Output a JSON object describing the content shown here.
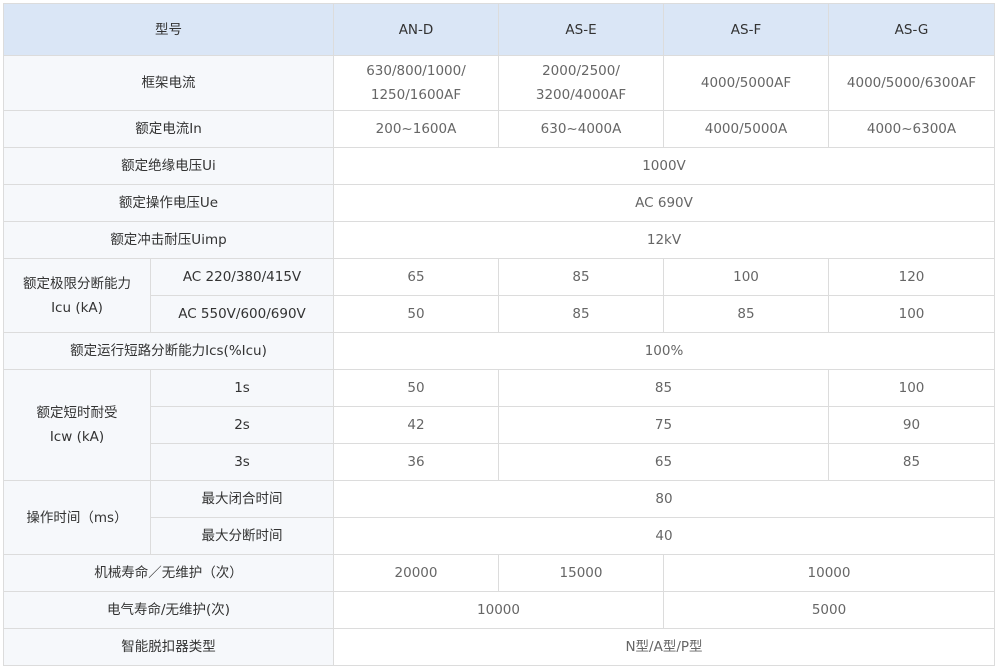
{
  "header": {
    "label": "型号",
    "models": [
      "AN-D",
      "AS-E",
      "AS-F",
      "AS-G"
    ]
  },
  "rows": {
    "frame": {
      "label": "框架电流",
      "values": [
        "630/800/1000/\n1250/1600AF",
        "2000/2500/\n3200/4000AF",
        "4000/5000AF",
        "4000/5000/6300AF"
      ]
    },
    "in": {
      "label": "额定电流In",
      "values": [
        "200~1600A",
        "630~4000A",
        "4000/5000A",
        "4000~6300A"
      ]
    },
    "ui": {
      "label": "额定绝缘电压Ui",
      "value": "1000V"
    },
    "ue": {
      "label": "额定操作电压Ue",
      "value": "AC 690V"
    },
    "uimp": {
      "label": "额定冲击耐压Uimp",
      "value": "12kV"
    },
    "icu": {
      "label": "额定极限分断能力\nIcu (kA)",
      "sub": [
        {
          "label": "AC 220/380/415V",
          "values": [
            "65",
            "85",
            "100",
            "120"
          ]
        },
        {
          "label": "AC 550V/600/690V",
          "values": [
            "50",
            "85",
            "85",
            "100"
          ]
        }
      ]
    },
    "ics": {
      "label": "额定运行短路分断能力Ics(%Icu)",
      "value": "100%"
    },
    "icw": {
      "label": "额定短时耐受\nIcw (kA)",
      "sub": [
        {
          "label": "1s",
          "values": [
            "50",
            "85",
            "100"
          ]
        },
        {
          "label": "2s",
          "values": [
            "42",
            "75",
            "90"
          ]
        },
        {
          "label": "3s",
          "values": [
            "36",
            "65",
            "85"
          ]
        }
      ]
    },
    "optime": {
      "label": "操作时间（ms）",
      "sub": [
        {
          "label": "最大闭合时间",
          "value": "80"
        },
        {
          "label": "最大分断时间",
          "value": "40"
        }
      ]
    },
    "mech": {
      "label": "机械寿命／无维护（次）",
      "values": [
        "20000",
        "15000",
        "10000"
      ]
    },
    "elec": {
      "label": "电气寿命/无维护(次)",
      "values": [
        "10000",
        "5000"
      ]
    },
    "trip": {
      "label": "智能脱扣器类型",
      "value": "N型/A型/P型"
    }
  },
  "colors": {
    "header_bg": "#dae6f6",
    "label_bg": "#f6f8fb",
    "border": "#dcdcdc"
  }
}
